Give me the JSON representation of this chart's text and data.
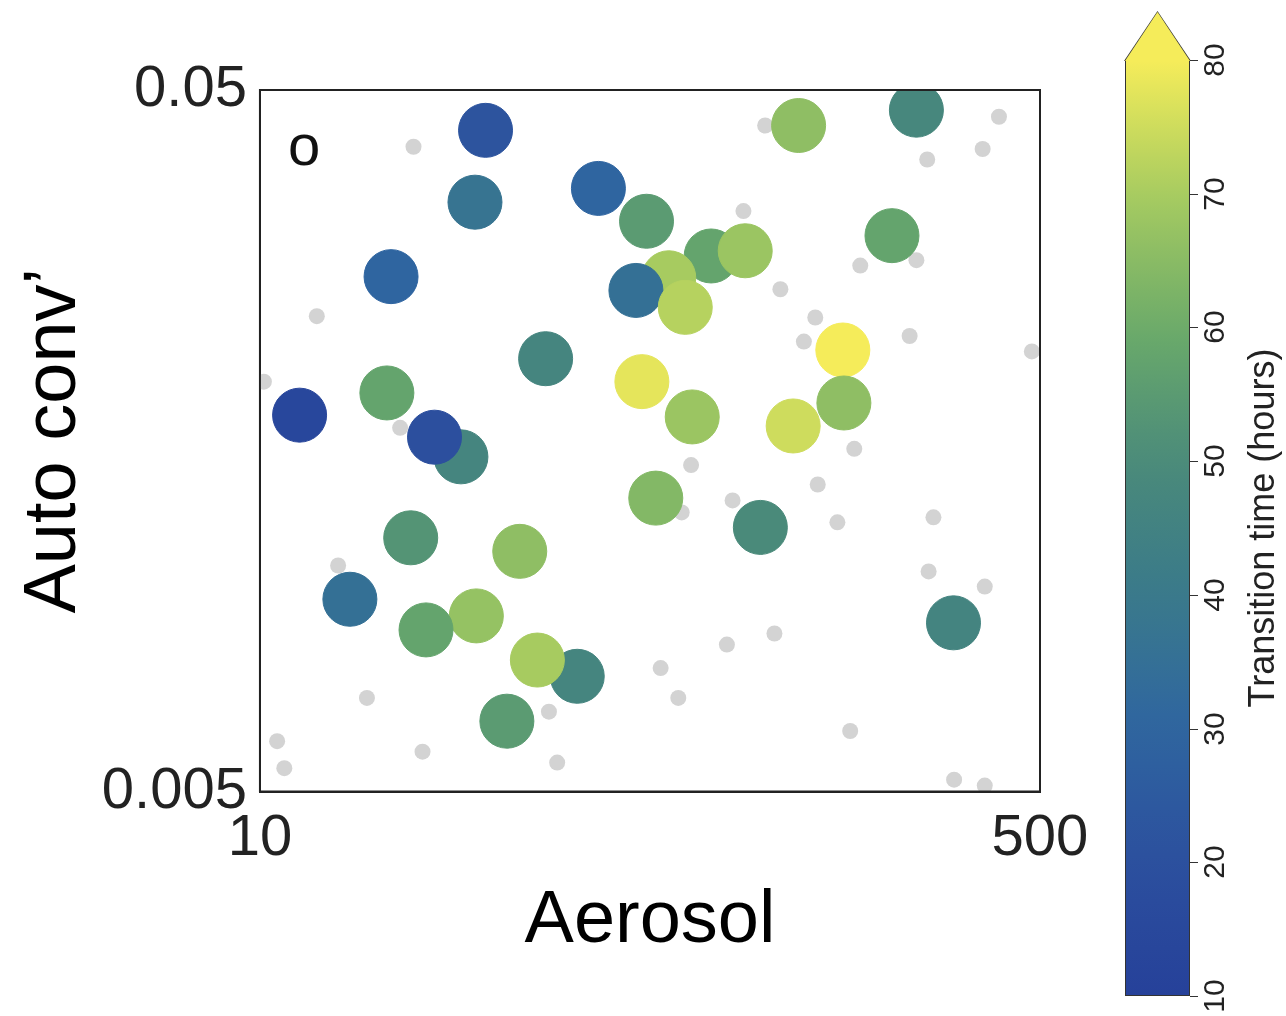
{
  "chart_data": {
    "type": "scatter",
    "xlabel": "Aerosol",
    "ylabel": "Auto conv’",
    "clabel": "Transition time (hours)",
    "annotations": [
      "o"
    ],
    "log": "xy",
    "xlim": [
      10,
      500
    ],
    "xticks": [
      10,
      500
    ],
    "ylim": [
      0.005,
      0.05
    ],
    "yticks": [
      0.005,
      0.05
    ],
    "clim": [
      10,
      80
    ],
    "cticks": [
      10,
      20,
      30,
      40,
      50,
      60,
      70,
      80
    ],
    "legend": false,
    "marker": "circle",
    "series": [
      {
        "color": "#d3d3d3",
        "x": [
          21.6,
          126,
          407,
          375,
          284,
          113,
          203,
          269,
          136,
          13.3,
          162,
          260,
          480,
          10.2,
          20.2,
          197,
          86.9,
          164,
          107,
          82.9,
          181,
          293,
          14.8,
          286,
          379,
          132,
          104,
          17.1,
          74.6,
          81.5,
          42.6,
          10.9,
          22.6,
          193,
          44.4,
          11.3,
          325,
          379,
          153
        ],
        "values": [
          0.0415,
          0.0445,
          0.0458,
          0.0412,
          0.0398,
          0.0336,
          0.0281,
          0.0286,
          0.026,
          0.0238,
          0.0237,
          0.0223,
          0.0212,
          0.0192,
          0.0165,
          0.0154,
          0.0146,
          0.0137,
          0.013,
          0.0125,
          0.0121,
          0.0123,
          0.0105,
          0.0103,
          0.0098,
          0.0084,
          0.0081,
          0.0068,
          0.0075,
          0.0068,
          0.0065,
          0.0059,
          0.0057,
          0.0061,
          0.0055,
          0.0054,
          0.0052,
          0.0051,
          0.0219
        ]
      },
      {
        "x": [
          31.0,
          54.6,
          29.4,
          19.3,
          69.5,
          96.1,
          114,
          77.7,
          65.9,
          84.4,
          149,
          269,
          238,
          41.9,
          186,
          67.9,
          18.9,
          12.2,
          87.4,
          145,
          187,
          27.4,
          24.0,
          72.8,
          21.3,
          36.8,
          123,
          15.7,
          29.6,
          23.0,
          49.1,
          40.2,
          34.5,
          324
        ],
        "values": [
          0.0438,
          0.0362,
          0.0346,
          0.0271,
          0.0325,
          0.029,
          0.0295,
          0.027,
          0.0259,
          0.0245,
          0.0445,
          0.0468,
          0.031,
          0.0207,
          0.0213,
          0.0192,
          0.0185,
          0.0172,
          0.0171,
          0.0166,
          0.0179,
          0.015,
          0.016,
          0.0131,
          0.0115,
          0.011,
          0.0119,
          0.0094,
          0.0089,
          0.0085,
          0.0073,
          0.0077,
          0.0063,
          0.0087
        ],
        "cvalues": [
          22,
          30,
          37,
          30,
          55,
          58,
          68,
          70,
          35,
          72,
          66,
          48,
          58,
          47,
          80,
          78,
          58,
          14,
          68,
          75,
          66,
          47,
          20,
          64,
          53,
          66,
          50,
          35,
          67,
          58,
          47,
          70,
          55,
          46
        ],
        "colors": [
          "#2d549e",
          "#2f65a1",
          "#377491",
          "#2f65a1",
          "#5b9b72",
          "#65a56d",
          "#9bc561",
          "#a8cc60",
          "#347095",
          "#b6d25f",
          "#8fbe64",
          "#47877d",
          "#65a56d",
          "#45857f",
          "#f5ec5a",
          "#e5e55b",
          "#65a56d",
          "#2a479c",
          "#9bc561",
          "#cedc5d",
          "#8fbe64",
          "#45857f",
          "#2c4f9e",
          "#83b966",
          "#549475",
          "#8fbe64",
          "#4a8a7a",
          "#347095",
          "#95c262",
          "#65a56d",
          "#45857f",
          "#a8cc60",
          "#5b9b72",
          "#448480"
        ]
      }
    ]
  }
}
